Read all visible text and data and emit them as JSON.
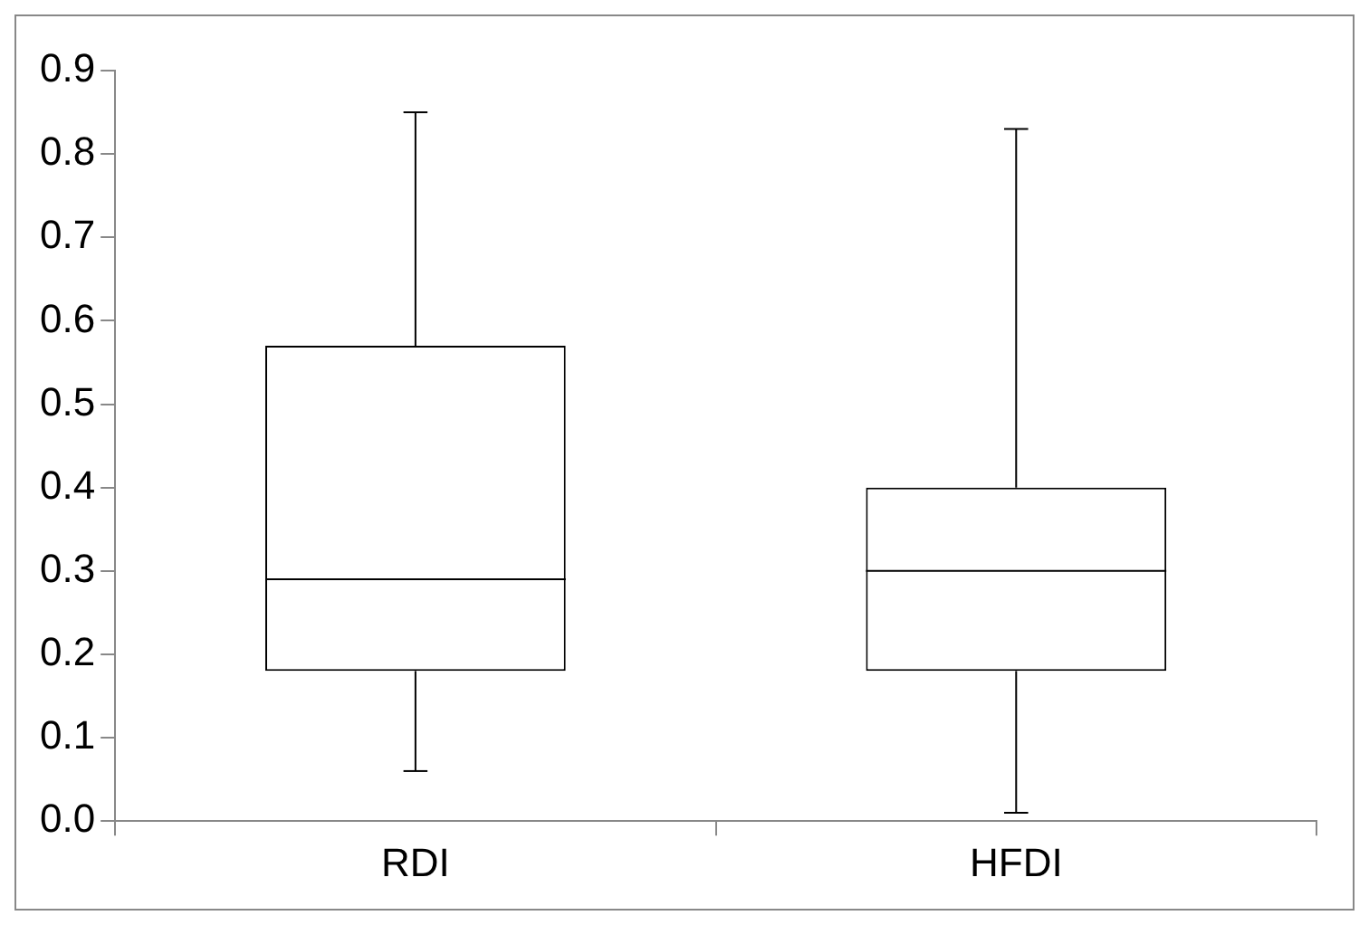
{
  "chart_data": {
    "type": "box",
    "categories": [
      "RDI",
      "HFDI"
    ],
    "boxes": [
      {
        "low": 0.06,
        "q1": 0.18,
        "median": 0.29,
        "q3": 0.57,
        "high": 0.85
      },
      {
        "low": 0.01,
        "q1": 0.18,
        "median": 0.3,
        "q3": 0.4,
        "high": 0.83
      }
    ],
    "ylim": [
      0,
      0.9
    ],
    "yticks": [
      {
        "value": 0,
        "label": "0.0"
      },
      {
        "value": 0.1,
        "label": "0.1"
      },
      {
        "value": 0.2,
        "label": "0.2"
      },
      {
        "value": 0.3,
        "label": "0.3"
      },
      {
        "value": 0.4,
        "label": "0.4"
      },
      {
        "value": 0.5,
        "label": "0.5"
      },
      {
        "value": 0.6,
        "label": "0.6"
      },
      {
        "value": 0.7,
        "label": "0.7"
      },
      {
        "value": 0.8,
        "label": "0.8"
      },
      {
        "value": 0.9,
        "label": "0.9"
      }
    ],
    "grid": false,
    "legend": false
  }
}
